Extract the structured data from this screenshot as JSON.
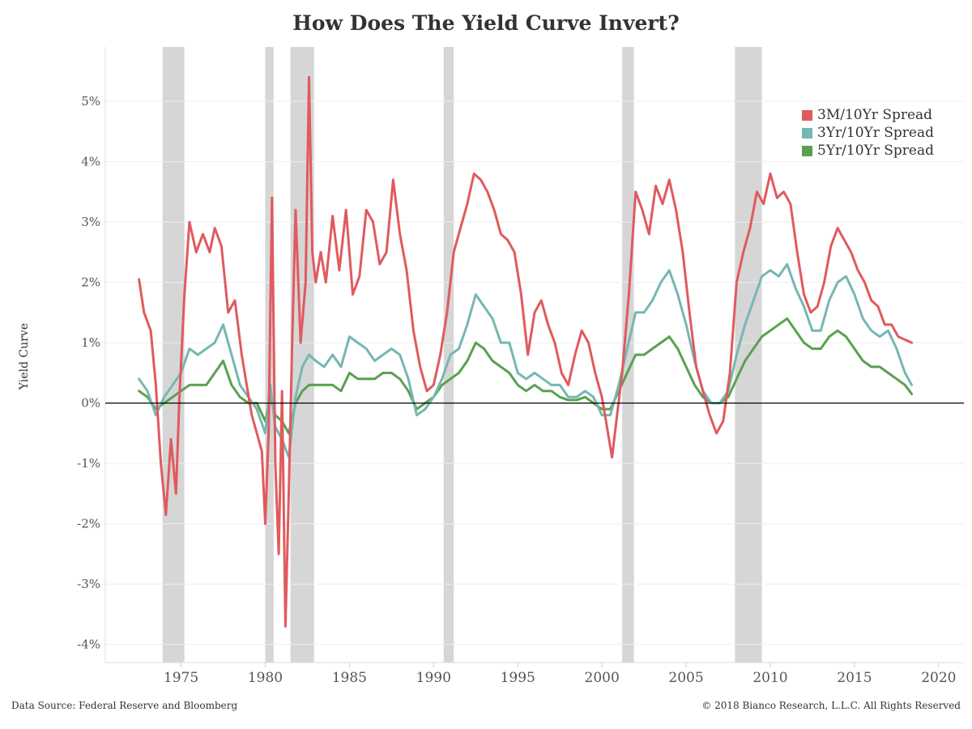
{
  "title": "How Does The Yield Curve Invert?",
  "ylabel": "Yield Curve",
  "source": "Data Source: Federal Reserve and Bloomberg",
  "copyright": "© 2018 Bianco Research, L.L.C. All Rights Reserved",
  "colors": {
    "s3m10y": "#e05a5e",
    "s3y10y": "#76b7b2",
    "s5y10y": "#59a14f",
    "recession": "#d6d6d6"
  },
  "chart_data": {
    "type": "line",
    "title": "How Does The Yield Curve Invert?",
    "xlabel": "",
    "ylabel": "Yield Curve",
    "xlim": [
      1970.5,
      2021.5
    ],
    "ylim": [
      -4.3,
      5.9
    ],
    "x_ticks": [
      1975,
      1980,
      1985,
      1990,
      1995,
      2000,
      2005,
      2010,
      2015,
      2020
    ],
    "y_ticks": [
      -4,
      -3,
      -2,
      -1,
      0,
      1,
      2,
      3,
      4,
      5
    ],
    "y_tick_labels": [
      "-4%",
      "-3%",
      "-2%",
      "-1%",
      "0%",
      "1%",
      "2%",
      "3%",
      "4%",
      "5%"
    ],
    "grid": "horizontal",
    "legend_position": "top-right",
    "recessions": [
      [
        1973.9,
        1975.2
      ],
      [
        1980.0,
        1980.5
      ],
      [
        1981.5,
        1982.9
      ],
      [
        1990.6,
        1991.2
      ],
      [
        2001.2,
        2001.9
      ],
      [
        2007.9,
        2009.5
      ]
    ],
    "series": [
      {
        "name": "3M/10Yr Spread",
        "color": "#e05a5e",
        "x": [
          1972.5,
          1972.8,
          1973.2,
          1973.5,
          1973.8,
          1974.1,
          1974.4,
          1974.7,
          1974.9,
          1975.2,
          1975.5,
          1975.9,
          1976.3,
          1976.7,
          1977.0,
          1977.4,
          1977.8,
          1978.2,
          1978.6,
          1978.9,
          1979.2,
          1979.5,
          1979.8,
          1980.0,
          1980.2,
          1980.4,
          1980.6,
          1980.8,
          1981.0,
          1981.2,
          1981.4,
          1981.6,
          1981.8,
          1982.1,
          1982.4,
          1982.6,
          1982.8,
          1983.0,
          1983.3,
          1983.6,
          1984.0,
          1984.4,
          1984.8,
          1985.2,
          1985.6,
          1986.0,
          1986.4,
          1986.8,
          1987.2,
          1987.6,
          1988.0,
          1988.4,
          1988.8,
          1989.2,
          1989.6,
          1990.0,
          1990.4,
          1990.8,
          1991.2,
          1991.6,
          1992.0,
          1992.4,
          1992.8,
          1993.2,
          1993.6,
          1994.0,
          1994.4,
          1994.8,
          1995.2,
          1995.6,
          1996.0,
          1996.4,
          1996.8,
          1997.2,
          1997.6,
          1998.0,
          1998.4,
          1998.8,
          1999.2,
          1999.6,
          2000.0,
          2000.3,
          2000.6,
          2000.9,
          2001.2,
          2001.6,
          2002.0,
          2002.4,
          2002.8,
          2003.2,
          2003.6,
          2004.0,
          2004.4,
          2004.8,
          2005.2,
          2005.6,
          2006.0,
          2006.4,
          2006.8,
          2007.2,
          2007.6,
          2008.0,
          2008.4,
          2008.8,
          2009.2,
          2009.6,
          2010.0,
          2010.4,
          2010.8,
          2011.2,
          2011.6,
          2012.0,
          2012.4,
          2012.8,
          2013.2,
          2013.6,
          2014.0,
          2014.4,
          2014.8,
          2015.2,
          2015.6,
          2016.0,
          2016.4,
          2016.8,
          2017.2,
          2017.6,
          2018.0,
          2018.4
        ],
        "y": [
          2.05,
          1.5,
          1.2,
          0.3,
          -1.0,
          -1.85,
          -0.6,
          -1.5,
          0.1,
          1.8,
          3.0,
          2.5,
          2.8,
          2.5,
          2.9,
          2.6,
          1.5,
          1.7,
          0.8,
          0.3,
          -0.2,
          -0.5,
          -0.8,
          -2.0,
          -0.5,
          3.4,
          -1.0,
          -2.5,
          0.2,
          -3.7,
          -1.5,
          1.0,
          3.2,
          1.0,
          2.0,
          5.4,
          2.5,
          2.0,
          2.5,
          2.0,
          3.1,
          2.2,
          3.2,
          1.8,
          2.1,
          3.2,
          3.0,
          2.3,
          2.5,
          3.7,
          2.8,
          2.2,
          1.2,
          0.6,
          0.2,
          0.3,
          0.8,
          1.5,
          2.5,
          2.9,
          3.3,
          3.8,
          3.7,
          3.5,
          3.2,
          2.8,
          2.7,
          2.5,
          1.8,
          0.8,
          1.5,
          1.7,
          1.3,
          1.0,
          0.5,
          0.3,
          0.8,
          1.2,
          1.0,
          0.5,
          0.1,
          -0.4,
          -0.9,
          -0.2,
          0.5,
          1.8,
          3.5,
          3.2,
          2.8,
          3.6,
          3.3,
          3.7,
          3.2,
          2.5,
          1.5,
          0.6,
          0.2,
          -0.2,
          -0.5,
          -0.3,
          0.5,
          2.0,
          2.5,
          2.9,
          3.5,
          3.3,
          3.8,
          3.4,
          3.5,
          3.3,
          2.5,
          1.8,
          1.5,
          1.6,
          2.0,
          2.6,
          2.9,
          2.7,
          2.5,
          2.2,
          2.0,
          1.7,
          1.6,
          1.3,
          1.3,
          1.1,
          1.05,
          1.0
        ]
      },
      {
        "name": "3Yr/10Yr Spread",
        "color": "#76b7b2",
        "x": [
          1972.5,
          1973.0,
          1973.5,
          1974.0,
          1974.5,
          1975.0,
          1975.5,
          1976.0,
          1976.5,
          1977.0,
          1977.5,
          1978.0,
          1978.5,
          1979.0,
          1979.5,
          1980.0,
          1980.3,
          1980.6,
          1981.0,
          1981.4,
          1981.8,
          1982.2,
          1982.6,
          1983.0,
          1983.5,
          1984.0,
          1984.5,
          1985.0,
          1985.5,
          1986.0,
          1986.5,
          1987.0,
          1987.5,
          1988.0,
          1988.5,
          1989.0,
          1989.5,
          1990.0,
          1990.5,
          1991.0,
          1991.5,
          1992.0,
          1992.5,
          1993.0,
          1993.5,
          1994.0,
          1994.5,
          1995.0,
          1995.5,
          1996.0,
          1996.5,
          1997.0,
          1997.5,
          1998.0,
          1998.5,
          1999.0,
          1999.5,
          2000.0,
          2000.5,
          2001.0,
          2001.5,
          2002.0,
          2002.5,
          2003.0,
          2003.5,
          2004.0,
          2004.5,
          2005.0,
          2005.5,
          2006.0,
          2006.5,
          2007.0,
          2007.5,
          2008.0,
          2008.5,
          2009.0,
          2009.5,
          2010.0,
          2010.5,
          2011.0,
          2011.5,
          2012.0,
          2012.5,
          2013.0,
          2013.5,
          2014.0,
          2014.5,
          2015.0,
          2015.5,
          2016.0,
          2016.5,
          2017.0,
          2017.5,
          2018.0,
          2018.4
        ],
        "y": [
          0.4,
          0.2,
          -0.2,
          0.1,
          0.3,
          0.5,
          0.9,
          0.8,
          0.9,
          1.0,
          1.3,
          0.8,
          0.3,
          0.1,
          -0.1,
          -0.5,
          0.3,
          -0.4,
          -0.6,
          -0.9,
          0.1,
          0.6,
          0.8,
          0.7,
          0.6,
          0.8,
          0.6,
          1.1,
          1.0,
          0.9,
          0.7,
          0.8,
          0.9,
          0.8,
          0.4,
          -0.2,
          -0.1,
          0.1,
          0.4,
          0.8,
          0.9,
          1.3,
          1.8,
          1.6,
          1.4,
          1.0,
          1.0,
          0.5,
          0.4,
          0.5,
          0.4,
          0.3,
          0.3,
          0.1,
          0.1,
          0.2,
          0.1,
          -0.2,
          -0.2,
          0.3,
          0.9,
          1.5,
          1.5,
          1.7,
          2.0,
          2.2,
          1.8,
          1.3,
          0.7,
          0.2,
          0.0,
          0.0,
          0.2,
          0.8,
          1.3,
          1.7,
          2.1,
          2.2,
          2.1,
          2.3,
          1.9,
          1.6,
          1.2,
          1.2,
          1.7,
          2.0,
          2.1,
          1.8,
          1.4,
          1.2,
          1.1,
          1.2,
          0.9,
          0.5,
          0.3
        ]
      },
      {
        "name": "5Yr/10Yr Spread",
        "color": "#59a14f",
        "x": [
          1972.5,
          1973.0,
          1973.5,
          1974.0,
          1974.5,
          1975.0,
          1975.5,
          1976.0,
          1976.5,
          1977.0,
          1977.5,
          1978.0,
          1978.5,
          1979.0,
          1979.5,
          1980.0,
          1980.3,
          1980.6,
          1981.0,
          1981.4,
          1981.8,
          1982.2,
          1982.6,
          1983.0,
          1983.5,
          1984.0,
          1984.5,
          1985.0,
          1985.5,
          1986.0,
          1986.5,
          1987.0,
          1987.5,
          1988.0,
          1988.5,
          1989.0,
          1989.5,
          1990.0,
          1990.5,
          1991.0,
          1991.5,
          1992.0,
          1992.5,
          1993.0,
          1993.5,
          1994.0,
          1994.5,
          1995.0,
          1995.5,
          1996.0,
          1996.5,
          1997.0,
          1997.5,
          1998.0,
          1998.5,
          1999.0,
          1999.5,
          2000.0,
          2000.5,
          2001.0,
          2001.5,
          2002.0,
          2002.5,
          2003.0,
          2003.5,
          2004.0,
          2004.5,
          2005.0,
          2005.5,
          2006.0,
          2006.5,
          2007.0,
          2007.5,
          2008.0,
          2008.5,
          2009.0,
          2009.5,
          2010.0,
          2010.5,
          2011.0,
          2011.5,
          2012.0,
          2012.5,
          2013.0,
          2013.5,
          2014.0,
          2014.5,
          2015.0,
          2015.5,
          2016.0,
          2016.5,
          2017.0,
          2017.5,
          2018.0,
          2018.4
        ],
        "y": [
          0.2,
          0.1,
          -0.1,
          0.0,
          0.1,
          0.2,
          0.3,
          0.3,
          0.3,
          0.5,
          0.7,
          0.3,
          0.1,
          0.0,
          0.0,
          -0.3,
          0.1,
          -0.2,
          -0.3,
          -0.5,
          0.0,
          0.2,
          0.3,
          0.3,
          0.3,
          0.3,
          0.2,
          0.5,
          0.4,
          0.4,
          0.4,
          0.5,
          0.5,
          0.4,
          0.2,
          -0.1,
          0.0,
          0.1,
          0.3,
          0.4,
          0.5,
          0.7,
          1.0,
          0.9,
          0.7,
          0.6,
          0.5,
          0.3,
          0.2,
          0.3,
          0.2,
          0.2,
          0.1,
          0.05,
          0.05,
          0.1,
          0.0,
          -0.1,
          -0.1,
          0.2,
          0.5,
          0.8,
          0.8,
          0.9,
          1.0,
          1.1,
          0.9,
          0.6,
          0.3,
          0.1,
          0.0,
          0.0,
          0.1,
          0.4,
          0.7,
          0.9,
          1.1,
          1.2,
          1.3,
          1.4,
          1.2,
          1.0,
          0.9,
          0.9,
          1.1,
          1.2,
          1.1,
          0.9,
          0.7,
          0.6,
          0.6,
          0.5,
          0.4,
          0.3,
          0.15
        ]
      }
    ]
  }
}
